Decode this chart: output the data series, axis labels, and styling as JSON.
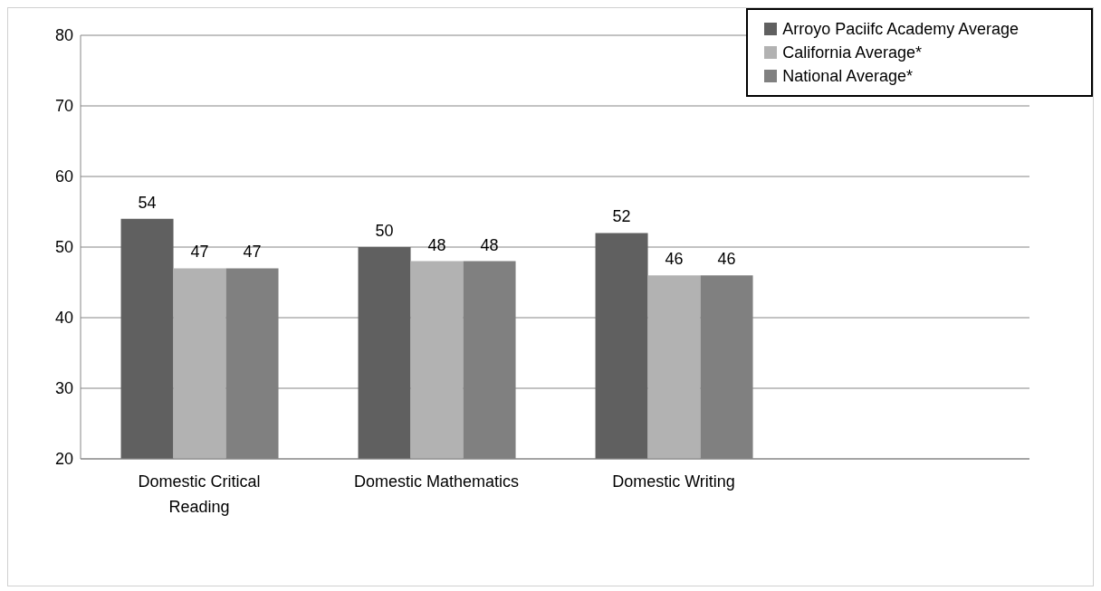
{
  "chart_data": {
    "type": "bar",
    "categories": [
      "Domestic Critical Reading",
      "Domestic Mathematics",
      "Domestic Writing",
      null
    ],
    "series": [
      {
        "name": "Arroyo Paciifc Academy Average",
        "color": "#606060",
        "values": [
          54,
          50,
          52,
          null
        ]
      },
      {
        "name": "California Average*",
        "color": "#b2b2b2",
        "values": [
          47,
          48,
          46,
          null
        ]
      },
      {
        "name": "National Average*",
        "color": "#808080",
        "values": [
          47,
          48,
          46,
          null
        ]
      }
    ],
    "ylim": [
      20,
      80
    ],
    "yticks": [
      20,
      30,
      40,
      50,
      60,
      70,
      80
    ],
    "grid": "y",
    "legend": "top right",
    "data_labels": true
  }
}
